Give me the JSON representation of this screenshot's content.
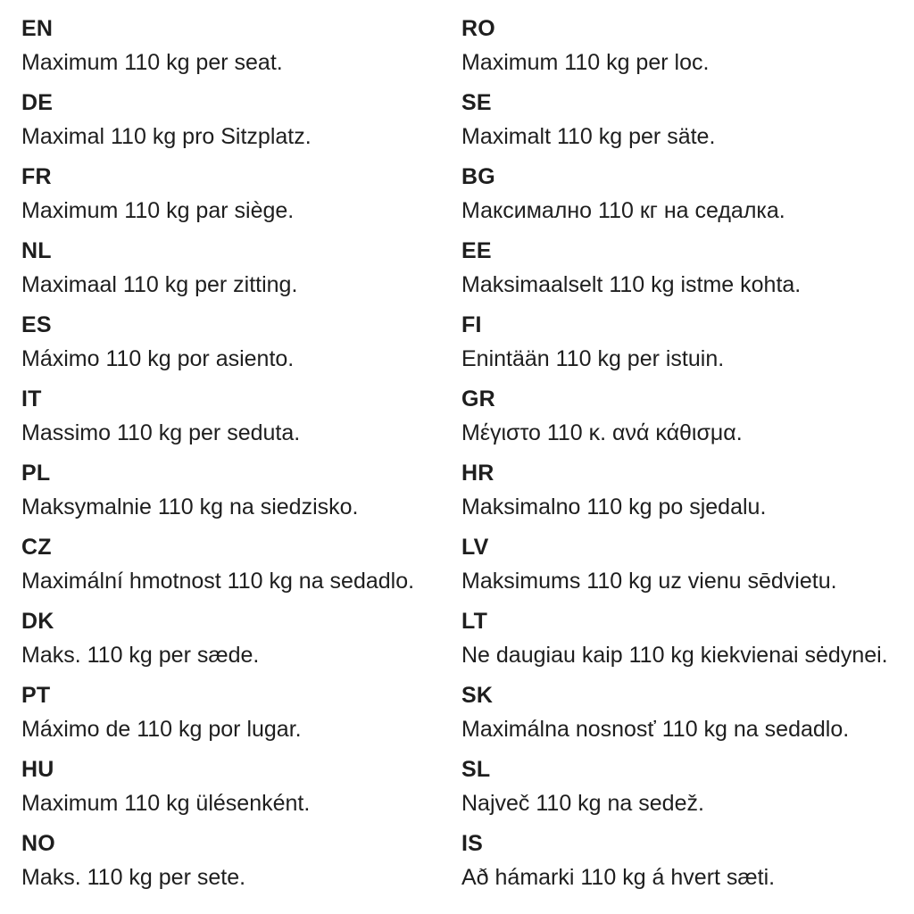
{
  "columns": [
    {
      "entries": [
        {
          "code": "EN",
          "text": "Maximum 110 kg per seat."
        },
        {
          "code": "DE",
          "text": "Maximal 110 kg pro Sitzplatz."
        },
        {
          "code": "FR",
          "text": "Maximum 110 kg par siège."
        },
        {
          "code": "NL",
          "text": "Maximaal 110 kg per zitting."
        },
        {
          "code": "ES",
          "text": "Máximo 110 kg por asiento."
        },
        {
          "code": "IT",
          "text": "Massimo 110 kg per seduta."
        },
        {
          "code": "PL",
          "text": "Maksymalnie 110 kg na siedzisko."
        },
        {
          "code": "CZ",
          "text": "Maximální hmotnost 110 kg na sedadlo."
        },
        {
          "code": "DK",
          "text": "Maks. 110 kg per sæde."
        },
        {
          "code": "PT",
          "text": "Máximo de 110 kg por lugar."
        },
        {
          "code": "HU",
          "text": "Maximum 110 kg ülésenként."
        },
        {
          "code": "NO",
          "text": "Maks. 110 kg per sete."
        }
      ]
    },
    {
      "entries": [
        {
          "code": "RO",
          "text": "Maximum 110 kg per loc."
        },
        {
          "code": "SE",
          "text": "Maximalt 110 kg per säte."
        },
        {
          "code": "BG",
          "text": "Максимално 110 кг на седалка."
        },
        {
          "code": "EE",
          "text": "Maksimaalselt 110 kg istme kohta."
        },
        {
          "code": "FI",
          "text": "Enintään 110 kg per istuin."
        },
        {
          "code": "GR",
          "text": "Μέγιστο 110 κ. ανά κάθισμα."
        },
        {
          "code": "HR",
          "text": "Maksimalno 110 kg po sjedalu."
        },
        {
          "code": "LV",
          "text": "Maksimums 110 kg uz vienu sēdvietu."
        },
        {
          "code": "LT",
          "text": "Ne daugiau kaip 110 kg kiekvienai sėdynei."
        },
        {
          "code": "SK",
          "text": "Maximálna nosnosť 110 kg na sedadlo."
        },
        {
          "code": "SL",
          "text": "Največ 110 kg na sedež."
        },
        {
          "code": "IS",
          "text": "Að hámarki 110 kg á hvert sæti."
        }
      ]
    }
  ]
}
